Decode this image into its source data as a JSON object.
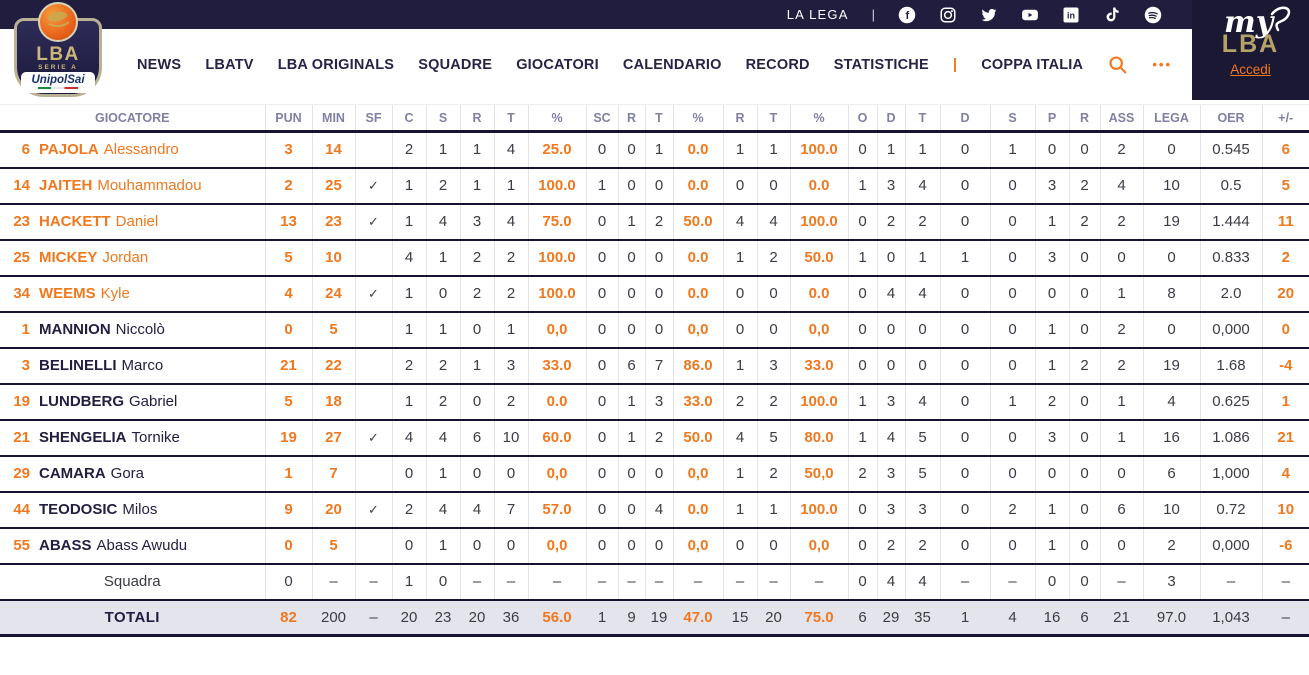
{
  "colors": {
    "accent_orange": "#f0781e",
    "navy": "#211d3f",
    "header_text": "#8080a6",
    "row_line": "#161333",
    "grid_line": "#e3e3ee",
    "totals_bg": "#e4e4ec",
    "gold": "#b5a268"
  },
  "topbar": {
    "la_lega": "LA LEGA",
    "divider": "|",
    "social": [
      "facebook",
      "instagram",
      "twitter",
      "youtube",
      "linkedin",
      "tiktok",
      "spotify"
    ]
  },
  "nav": {
    "items": [
      "NEWS",
      "LBATV",
      "LBA ORIGINALS",
      "SQUADRE",
      "GIOCATORI",
      "CALENDARIO",
      "RECORD",
      "STATISTICHE"
    ],
    "coppa_divider": "|",
    "coppa_italia": "COPPA ITALIA",
    "search_icon": "search",
    "more_icon": "•••"
  },
  "logo": {
    "lba": "LBA",
    "serie_a": "SERIE A",
    "sponsor": "UnipolSai"
  },
  "mylba": {
    "my": "my",
    "lba": "LBA",
    "accedi": "Accedi"
  },
  "table": {
    "columns": [
      "GIOCATORE",
      "PUN",
      "MIN",
      "SF",
      "C",
      "S",
      "R",
      "T",
      "%",
      "SC",
      "R",
      "T",
      "%",
      "R",
      "T",
      "%",
      "O",
      "D",
      "T",
      "D",
      "S",
      "P",
      "R",
      "ASS",
      "LEGA",
      "OER",
      "+/-"
    ],
    "accent_cols": {
      "player": [
        0,
        1,
        7,
        11,
        14,
        25
      ],
      "squadra": [],
      "totals": [
        0,
        7,
        11,
        14
      ]
    },
    "rows": [
      {
        "type": "player",
        "number": "6",
        "surname": "PAJOLA",
        "firstname": "Alessandro",
        "name_orange": true,
        "cells": [
          "3",
          "14",
          "",
          "2",
          "1",
          "1",
          "4",
          "25.0",
          "0",
          "0",
          "1",
          "0.0",
          "1",
          "1",
          "100.0",
          "0",
          "1",
          "1",
          "0",
          "1",
          "0",
          "0",
          "2",
          "0",
          "0.545",
          "6"
        ]
      },
      {
        "type": "player",
        "number": "14",
        "surname": "JAITEH",
        "firstname": "Mouhammadou",
        "name_orange": true,
        "cells": [
          "2",
          "25",
          "✓",
          "1",
          "2",
          "1",
          "1",
          "100.0",
          "1",
          "0",
          "0",
          "0.0",
          "0",
          "0",
          "0.0",
          "1",
          "3",
          "4",
          "0",
          "0",
          "3",
          "2",
          "4",
          "10",
          "0.5",
          "5"
        ]
      },
      {
        "type": "player",
        "number": "23",
        "surname": "HACKETT",
        "firstname": "Daniel",
        "name_orange": true,
        "cells": [
          "13",
          "23",
          "✓",
          "1",
          "4",
          "3",
          "4",
          "75.0",
          "0",
          "1",
          "2",
          "50.0",
          "4",
          "4",
          "100.0",
          "0",
          "2",
          "2",
          "0",
          "0",
          "1",
          "2",
          "2",
          "19",
          "1.444",
          "11"
        ]
      },
      {
        "type": "player",
        "number": "25",
        "surname": "MICKEY",
        "firstname": "Jordan",
        "name_orange": true,
        "cells": [
          "5",
          "10",
          "",
          "4",
          "1",
          "2",
          "2",
          "100.0",
          "0",
          "0",
          "0",
          "0.0",
          "1",
          "2",
          "50.0",
          "1",
          "0",
          "1",
          "1",
          "0",
          "3",
          "0",
          "0",
          "0",
          "0.833",
          "2"
        ]
      },
      {
        "type": "player",
        "number": "34",
        "surname": "WEEMS",
        "firstname": "Kyle",
        "name_orange": true,
        "cells": [
          "4",
          "24",
          "✓",
          "1",
          "0",
          "2",
          "2",
          "100.0",
          "0",
          "0",
          "0",
          "0.0",
          "0",
          "0",
          "0.0",
          "0",
          "4",
          "4",
          "0",
          "0",
          "0",
          "0",
          "1",
          "8",
          "2.0",
          "20"
        ]
      },
      {
        "type": "player",
        "number": "1",
        "surname": "MANNION",
        "firstname": "Niccolò",
        "name_orange": false,
        "cells": [
          "0",
          "5",
          "",
          "1",
          "1",
          "0",
          "1",
          "0,0",
          "0",
          "0",
          "0",
          "0,0",
          "0",
          "0",
          "0,0",
          "0",
          "0",
          "0",
          "0",
          "0",
          "1",
          "0",
          "2",
          "0",
          "0,000",
          "0"
        ]
      },
      {
        "type": "player",
        "number": "3",
        "surname": "BELINELLI",
        "firstname": "Marco",
        "name_orange": false,
        "cells": [
          "21",
          "22",
          "",
          "2",
          "2",
          "1",
          "3",
          "33.0",
          "0",
          "6",
          "7",
          "86.0",
          "1",
          "3",
          "33.0",
          "0",
          "0",
          "0",
          "0",
          "0",
          "1",
          "2",
          "2",
          "19",
          "1.68",
          "-4"
        ]
      },
      {
        "type": "player",
        "number": "19",
        "surname": "LUNDBERG",
        "firstname": "Gabriel",
        "name_orange": false,
        "cells": [
          "5",
          "18",
          "",
          "1",
          "2",
          "0",
          "2",
          "0.0",
          "0",
          "1",
          "3",
          "33.0",
          "2",
          "2",
          "100.0",
          "1",
          "3",
          "4",
          "0",
          "1",
          "2",
          "0",
          "1",
          "4",
          "0.625",
          "1"
        ]
      },
      {
        "type": "player",
        "number": "21",
        "surname": "SHENGELIA",
        "firstname": "Tornike",
        "name_orange": false,
        "cells": [
          "19",
          "27",
          "✓",
          "4",
          "4",
          "6",
          "10",
          "60.0",
          "0",
          "1",
          "2",
          "50.0",
          "4",
          "5",
          "80.0",
          "1",
          "4",
          "5",
          "0",
          "0",
          "3",
          "0",
          "1",
          "16",
          "1.086",
          "21"
        ]
      },
      {
        "type": "player",
        "number": "29",
        "surname": "CAMARA",
        "firstname": "Gora",
        "name_orange": false,
        "cells": [
          "1",
          "7",
          "",
          "0",
          "1",
          "0",
          "0",
          "0,0",
          "0",
          "0",
          "0",
          "0,0",
          "1",
          "2",
          "50,0",
          "2",
          "3",
          "5",
          "0",
          "0",
          "0",
          "0",
          "0",
          "6",
          "1,000",
          "4"
        ]
      },
      {
        "type": "player",
        "number": "44",
        "surname": "TEODOSIC",
        "firstname": "Milos",
        "name_orange": false,
        "cells": [
          "9",
          "20",
          "✓",
          "2",
          "4",
          "4",
          "7",
          "57.0",
          "0",
          "0",
          "4",
          "0.0",
          "1",
          "1",
          "100.0",
          "0",
          "3",
          "3",
          "0",
          "2",
          "1",
          "0",
          "6",
          "10",
          "0.72",
          "10"
        ]
      },
      {
        "type": "player",
        "number": "55",
        "surname": "ABASS",
        "firstname": "Abass Awudu",
        "name_orange": false,
        "cells": [
          "0",
          "5",
          "",
          "0",
          "1",
          "0",
          "0",
          "0,0",
          "0",
          "0",
          "0",
          "0,0",
          "0",
          "0",
          "0,0",
          "0",
          "2",
          "2",
          "0",
          "0",
          "1",
          "0",
          "0",
          "2",
          "0,000",
          "-6"
        ]
      },
      {
        "type": "squadra",
        "label": "Squadra",
        "cells": [
          "0",
          "–",
          "–",
          "1",
          "0",
          "–",
          "–",
          "–",
          "–",
          "–",
          "–",
          "–",
          "–",
          "–",
          "–",
          "0",
          "4",
          "4",
          "–",
          "–",
          "0",
          "0",
          "–",
          "3",
          "–",
          "–"
        ]
      },
      {
        "type": "totals",
        "label": "TOTALI",
        "cells": [
          "82",
          "200",
          "–",
          "20",
          "23",
          "20",
          "36",
          "56.0",
          "1",
          "9",
          "19",
          "47.0",
          "15",
          "20",
          "75.0",
          "6",
          "29",
          "35",
          "1",
          "4",
          "16",
          "6",
          "21",
          "97.0",
          "1,043",
          "–"
        ]
      }
    ]
  }
}
